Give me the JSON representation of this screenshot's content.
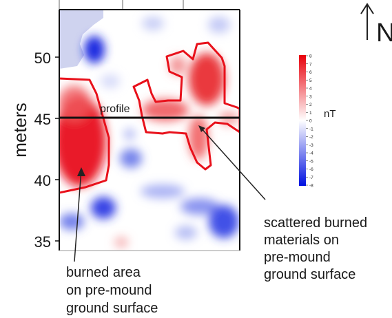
{
  "axis": {
    "label": "meters",
    "ticks": [
      {
        "value": 50,
        "label": "50"
      },
      {
        "value": 45,
        "label": "45"
      },
      {
        "value": 40,
        "label": "40"
      },
      {
        "value": 35,
        "label": "35"
      }
    ]
  },
  "north_label": "N",
  "profile_label": "profile",
  "colorbar": {
    "unit": "nT",
    "values": [
      "8",
      "7",
      "6",
      "5",
      "4",
      "3",
      "2",
      "1",
      "0",
      "-1",
      "-2",
      "-3",
      "-4",
      "-5",
      "-6",
      "-7",
      "-8"
    ],
    "colors": {
      "positive": "#e8000b",
      "zero": "#ffffff",
      "negative": "#0010e0"
    }
  },
  "annotations": {
    "scattered": [
      "scattered burned",
      "materials on",
      "pre-mound",
      "ground surface"
    ],
    "burned_area": [
      "burned area",
      "on pre-mound",
      "ground surface"
    ]
  },
  "colors": {
    "outline": "#e8101a",
    "profile_line": "#111111",
    "missing_data": "#cfd3ef"
  }
}
